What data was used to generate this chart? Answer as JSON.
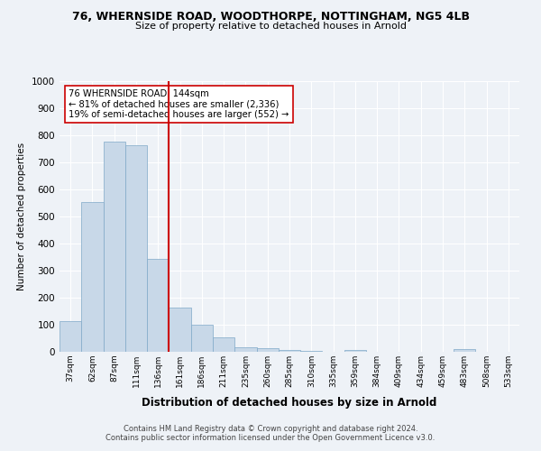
{
  "title_line1": "76, WHERNSIDE ROAD, WOODTHORPE, NOTTINGHAM, NG5 4LB",
  "title_line2": "Size of property relative to detached houses in Arnold",
  "xlabel": "Distribution of detached houses by size in Arnold",
  "ylabel": "Number of detached properties",
  "categories": [
    "37sqm",
    "62sqm",
    "87sqm",
    "111sqm",
    "136sqm",
    "161sqm",
    "186sqm",
    "211sqm",
    "235sqm",
    "260sqm",
    "285sqm",
    "310sqm",
    "335sqm",
    "359sqm",
    "384sqm",
    "409sqm",
    "434sqm",
    "459sqm",
    "483sqm",
    "508sqm",
    "533sqm"
  ],
  "values": [
    112,
    553,
    778,
    763,
    345,
    163,
    99,
    55,
    17,
    12,
    8,
    5,
    0,
    6,
    0,
    0,
    0,
    0,
    9,
    0,
    0
  ],
  "bar_color": "#c8d8e8",
  "bar_edge_color": "#7fa8c8",
  "property_line_label": "76 WHERNSIDE ROAD: 144sqm",
  "annotation_line2": "← 81% of detached houses are smaller (2,336)",
  "annotation_line3": "19% of semi-detached houses are larger (552) →",
  "red_line_color": "#cc0000",
  "annotation_box_color": "#ffffff",
  "annotation_box_edge": "#cc0000",
  "ylim": [
    0,
    1000
  ],
  "yticks": [
    0,
    100,
    200,
    300,
    400,
    500,
    600,
    700,
    800,
    900,
    1000
  ],
  "footnote_line1": "Contains HM Land Registry data © Crown copyright and database right 2024.",
  "footnote_line2": "Contains public sector information licensed under the Open Government Licence v3.0.",
  "bg_color": "#eef2f7",
  "plot_bg_color": "#eef2f7",
  "grid_color": "#ffffff"
}
